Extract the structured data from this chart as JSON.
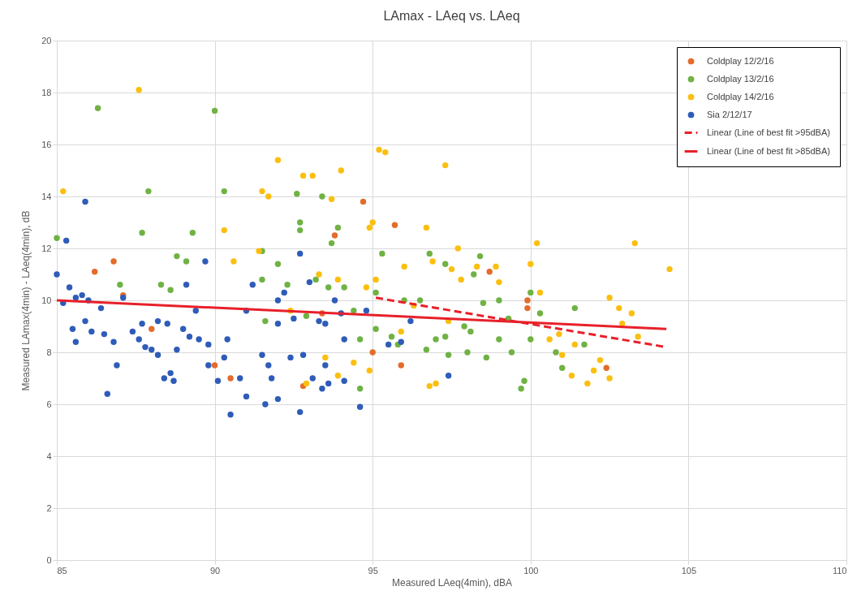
{
  "chart_data": {
    "type": "scatter",
    "title": "LAmax - LAeq vs. LAeq",
    "xlabel": "Measured LAeq(4min), dBA",
    "ylabel": "Measured LAmax(4min) - LAeq(4min), dB",
    "xlim": [
      85,
      110
    ],
    "xticks": [
      85,
      90,
      95,
      100,
      105,
      110
    ],
    "ylim": [
      0,
      20
    ],
    "yticks": [
      0,
      2,
      4,
      6,
      8,
      10,
      12,
      14,
      16,
      18,
      20
    ],
    "grid": true,
    "legend": "top right",
    "marker": "circle",
    "series": [
      {
        "name": "Coldplay 12/2/16",
        "color": "#e36c2c",
        "x": [
          86.2,
          86.8,
          87.1,
          88.0,
          90.0,
          90.5,
          92.8,
          93.8,
          94.7,
          95.7,
          95.0,
          95.9,
          98.7,
          99.9,
          99.9,
          102.4,
          93.4
        ],
        "values": [
          11.1,
          11.5,
          10.2,
          8.9,
          7.5,
          7.0,
          6.7,
          12.5,
          13.8,
          12.9,
          8.0,
          7.5,
          11.1,
          10.0,
          9.7,
          7.4,
          9.5
        ]
      },
      {
        "name": "Coldplay 13/2/16",
        "color": "#70b244",
        "x": [
          85.0,
          86.3,
          90.0,
          87.9,
          90.3,
          87.7,
          89.3,
          88.8,
          89.1,
          87.0,
          88.3,
          88.6,
          91.5,
          92.0,
          92.7,
          92.7,
          92.6,
          93.4,
          93.9,
          93.7,
          91.5,
          92.3,
          93.2,
          93.6,
          94.1,
          94.4,
          91.6,
          92.9,
          94.6,
          94.6,
          95.1,
          95.3,
          96.0,
          96.5,
          96.8,
          95.1,
          95.6,
          95.8,
          96.7,
          97.3,
          97.4,
          97.3,
          97.9,
          98.4,
          98.5,
          99.0,
          98.2,
          98.1,
          98.6,
          99.3,
          99.7,
          100.0,
          100.0,
          100.3,
          101.0,
          101.4,
          101.7,
          99.4,
          98.0,
          100.8,
          97.0,
          99.0,
          99.8
        ],
        "values": [
          12.4,
          17.4,
          17.3,
          14.2,
          14.2,
          12.6,
          12.6,
          11.7,
          11.5,
          10.6,
          10.6,
          10.4,
          11.9,
          11.4,
          13.0,
          12.7,
          14.1,
          14.0,
          12.8,
          12.2,
          10.8,
          10.6,
          10.8,
          10.5,
          10.5,
          9.6,
          9.2,
          9.4,
          8.5,
          6.6,
          10.3,
          11.8,
          10.0,
          10.0,
          11.8,
          8.9,
          8.6,
          8.3,
          8.1,
          8.6,
          7.9,
          11.4,
          9.0,
          11.7,
          9.9,
          10.0,
          11.0,
          8.8,
          7.8,
          9.3,
          6.6,
          10.3,
          8.5,
          9.5,
          7.4,
          9.7,
          8.3,
          8.0,
          8.0,
          8.0,
          8.5,
          8.5,
          6.9
        ]
      },
      {
        "name": "Coldplay 14/2/16",
        "color": "#fbbf10",
        "x": [
          85.2,
          87.6,
          90.3,
          90.6,
          91.4,
          91.5,
          91.7,
          92.0,
          92.8,
          93.1,
          93.7,
          94.0,
          93.3,
          93.9,
          94.9,
          95.0,
          95.2,
          95.4,
          96.7,
          97.3,
          95.1,
          96.0,
          96.9,
          97.5,
          97.7,
          98.3,
          97.4,
          97.8,
          98.9,
          99.0,
          100.2,
          100.0,
          100.3,
          103.3,
          104.4,
          93.5,
          93.9,
          94.4,
          94.9,
          92.9,
          95.9,
          96.8,
          97.0,
          100.6,
          101.0,
          101.4,
          101.3,
          102.0,
          102.2,
          102.5,
          102.5,
          102.8,
          103.2,
          101.8,
          102.9,
          103.4,
          100.9,
          96.3,
          94.8,
          92.4
        ],
        "values": [
          14.2,
          18.1,
          12.7,
          11.5,
          11.9,
          14.2,
          14.0,
          15.4,
          14.8,
          14.8,
          13.9,
          15.0,
          11.0,
          10.8,
          12.8,
          13.0,
          15.8,
          15.7,
          12.8,
          15.2,
          10.8,
          11.3,
          11.5,
          11.2,
          12.0,
          11.3,
          9.2,
          10.8,
          11.3,
          10.7,
          12.2,
          11.4,
          10.3,
          12.2,
          11.2,
          7.8,
          7.1,
          7.6,
          7.3,
          6.8,
          8.8,
          6.7,
          6.8,
          8.5,
          7.9,
          8.3,
          7.1,
          7.3,
          7.7,
          7.0,
          10.1,
          9.7,
          9.5,
          6.8,
          9.1,
          8.6,
          8.7,
          9.8,
          10.5,
          9.6
        ]
      },
      {
        "name": "Sia 2/12/17",
        "color": "#2e5cb8",
        "x": [
          85.0,
          85.3,
          85.9,
          85.2,
          85.4,
          85.6,
          85.8,
          86.0,
          86.4,
          85.5,
          85.9,
          86.1,
          85.6,
          86.5,
          86.8,
          86.6,
          86.9,
          87.1,
          87.4,
          87.6,
          87.8,
          88.0,
          87.7,
          88.2,
          88.5,
          88.2,
          88.4,
          88.6,
          88.8,
          89.0,
          89.2,
          89.5,
          89.8,
          89.1,
          89.4,
          89.7,
          88.7,
          89.8,
          90.1,
          90.3,
          90.4,
          90.5,
          90.8,
          91.0,
          91.2,
          91.5,
          91.7,
          91.8,
          91.6,
          92.0,
          92.0,
          92.2,
          92.4,
          92.5,
          92.7,
          92.8,
          92.7,
          93.0,
          93.1,
          93.3,
          93.5,
          93.4,
          93.6,
          93.8,
          94.0,
          94.1,
          94.6,
          94.8,
          95.5,
          95.9,
          96.2,
          97.4,
          94.1,
          93.5,
          92.0,
          91.0
        ],
        "values": [
          11.0,
          12.3,
          13.8,
          9.9,
          10.5,
          10.1,
          10.2,
          10.0,
          9.7,
          8.9,
          9.2,
          8.8,
          8.4,
          8.7,
          8.4,
          6.4,
          7.5,
          10.1,
          8.8,
          8.5,
          8.2,
          8.1,
          9.1,
          9.2,
          9.1,
          7.9,
          7.0,
          7.2,
          8.1,
          8.9,
          8.6,
          8.5,
          8.3,
          10.6,
          9.6,
          11.5,
          6.9,
          7.5,
          6.9,
          7.8,
          8.5,
          5.6,
          7.0,
          6.3,
          10.6,
          7.9,
          7.5,
          7.0,
          6.0,
          6.2,
          10.0,
          10.3,
          7.8,
          9.3,
          11.8,
          7.9,
          5.7,
          10.7,
          7.0,
          9.2,
          9.1,
          6.6,
          6.8,
          10.0,
          9.5,
          6.9,
          5.9,
          9.6,
          8.3,
          8.4,
          9.2,
          7.1,
          8.5,
          7.5,
          9.1,
          9.6
        ]
      },
      {
        "name": "Linear (Line of best fit >95dBA)",
        "type": "line",
        "line_style": "dashed",
        "marker": "none",
        "color": "#e8202a",
        "x": [
          95.1,
          104.3
        ],
        "values": [
          10.1,
          8.2
        ]
      },
      {
        "name": "Linear (Line of best fit >85dBA)",
        "type": "line",
        "line_style": "solid",
        "marker": "none",
        "color": "#e8202a",
        "x": [
          85.0,
          104.3
        ],
        "values": [
          10.0,
          8.9
        ]
      }
    ]
  }
}
